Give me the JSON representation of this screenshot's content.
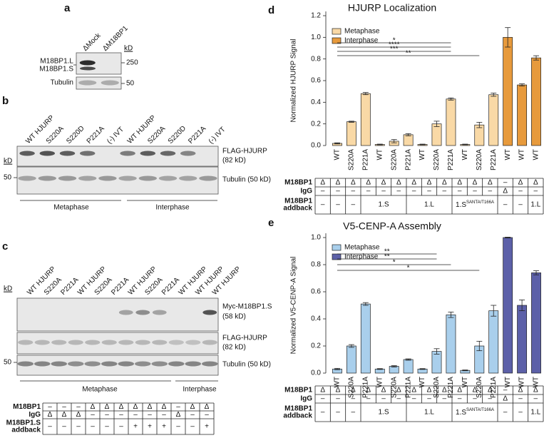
{
  "panel_a": {
    "label": "a",
    "lanes": [
      "ΔMock",
      "ΔM18BP1"
    ],
    "kd": "kD",
    "markers": [
      250,
      50
    ],
    "bands": [
      "M18BP1.L",
      "M18BP1.S"
    ],
    "loading": "Tubulin"
  },
  "panel_b": {
    "label": "b",
    "lanes": [
      "WT HJURP",
      "S220A",
      "S220D",
      "P221A",
      "(-) IVT",
      "WT HJURP",
      "S220A",
      "S220D",
      "P221A",
      "(-) IVT"
    ],
    "kd": "kD",
    "markers": [
      50
    ],
    "blots": [
      [
        "FLAG-HJURP",
        "(82 kD)"
      ],
      [
        "Tubulin (50 kD)"
      ]
    ],
    "groups": [
      "Metaphase",
      "Interphase"
    ]
  },
  "panel_c": {
    "label": "c",
    "lanes": [
      "WT HJURP",
      "S220A",
      "P221A",
      "WT HJURP",
      "S220A",
      "P221A",
      "WT HJURP",
      "S220A",
      "P221A",
      "WT HJURP",
      "WT HJURP",
      "WT HJURP"
    ],
    "kd": "kD",
    "markers": [
      50
    ],
    "blots": [
      [
        "Myc-M18BP1.S",
        "(58 kD)"
      ],
      [
        "FLAG-HJURP",
        "(82 kD)"
      ],
      [
        "Tubulin (50 kD)"
      ]
    ],
    "groups": [
      "Metaphase",
      "Interphase"
    ],
    "table": {
      "rows": [
        {
          "label": [
            "M18BP1"
          ],
          "cells": [
            "–",
            "–",
            "–",
            "Δ",
            "Δ",
            "Δ",
            "Δ",
            "Δ",
            "Δ",
            "–",
            "Δ",
            "Δ"
          ]
        },
        {
          "label": [
            "IgG"
          ],
          "cells": [
            "Δ",
            "Δ",
            "Δ",
            "–",
            "–",
            "–",
            "–",
            "–",
            "–",
            "Δ",
            "–",
            "–"
          ]
        },
        {
          "label": [
            "M18BP1.S",
            "addback"
          ],
          "cells": [
            "–",
            "–",
            "–",
            "–",
            "–",
            "–",
            "+",
            "+",
            "+",
            "–",
            "–",
            "+"
          ]
        }
      ]
    }
  },
  "chart_data": [
    {
      "type": "bar",
      "label": "d",
      "title": "HJURP Localization",
      "y_label": "Normalized HJURP Signal",
      "categories": [
        "WT",
        "S220A",
        "P221A",
        "WT",
        "S220A",
        "P221A",
        "WT",
        "S220A",
        "P221A",
        "WT",
        "S220A",
        "P221A",
        "WT",
        "WT",
        "WT"
      ],
      "series": [
        {
          "name": "Metaphase",
          "color": "#f9d9a6",
          "values": [
            0.02,
            0.22,
            0.48,
            0.01,
            0.04,
            0.1,
            0.01,
            0.2,
            0.43,
            0.01,
            0.19,
            0.47,
            null,
            null,
            null
          ],
          "errors": [
            0.005,
            0.005,
            0.01,
            0.003,
            0.015,
            0.01,
            0.003,
            0.025,
            0.01,
            0.003,
            0.025,
            0.015,
            null,
            null,
            null
          ]
        },
        {
          "name": "Interphase",
          "color": "#e79a3c",
          "values": [
            null,
            null,
            null,
            null,
            null,
            null,
            null,
            null,
            null,
            null,
            null,
            null,
            1.0,
            0.56,
            0.81
          ],
          "errors": [
            null,
            null,
            null,
            null,
            null,
            null,
            null,
            null,
            null,
            null,
            null,
            null,
            0.09,
            0.01,
            0.02
          ]
        }
      ],
      "ylim": [
        0,
        1.2
      ],
      "yticks": [
        {
          "value": 0,
          "label": "0.0"
        },
        0.2,
        0.4,
        0.6,
        0.8,
        {
          "value": 1,
          "label": "1.0"
        },
        1.2
      ],
      "annotations": [
        "*",
        "****",
        "***",
        "**"
      ],
      "table": {
        "rows": [
          {
            "label": [
              "M18BP1"
            ],
            "cells": [
              "Δ",
              "Δ",
              "Δ",
              "Δ",
              "Δ",
              "Δ",
              "Δ",
              "Δ",
              "Δ",
              "Δ",
              "Δ",
              "Δ",
              "–",
              "Δ",
              "Δ"
            ]
          },
          {
            "label": [
              "IgG"
            ],
            "cells": [
              "–",
              "–",
              "–",
              "–",
              "–",
              "–",
              "–",
              "–",
              "–",
              "–",
              "–",
              "–",
              "Δ",
              "–",
              "–"
            ]
          },
          {
            "label": [
              "M18BP1",
              "addback"
            ],
            "cells": [
              "–",
              "–",
              "–",
              "1.S",
              "1.L",
              {
                "text": "1.S",
                "sup": "SANTA/T166A"
              },
              "–",
              "–",
              "1.L"
            ]
          }
        ]
      }
    },
    {
      "type": "bar",
      "label": "e",
      "title": "V5-CENP-A Assembly",
      "y_label": "Normalized V5-CENP-A Signal",
      "categories": [
        "WT",
        "S220A",
        "P221A",
        "WT",
        "S220A",
        "P221A",
        "WT",
        "S220A",
        "P221A",
        "WT",
        "S220A",
        "P221A",
        "WT",
        "WT",
        "WT"
      ],
      "series": [
        {
          "name": "Metaphase",
          "color": "#a9cfec",
          "values": [
            0.03,
            0.2,
            0.51,
            0.03,
            0.05,
            0.1,
            0.03,
            0.16,
            0.43,
            0.02,
            0.2,
            0.46,
            null,
            null,
            null
          ],
          "errors": [
            0.005,
            0.01,
            0.01,
            0.003,
            0.005,
            0.005,
            0.003,
            0.02,
            0.02,
            0.003,
            0.035,
            0.04,
            null,
            null,
            null
          ]
        },
        {
          "name": "Interphase",
          "color": "#5c60a8",
          "values": [
            null,
            null,
            null,
            null,
            null,
            null,
            null,
            null,
            null,
            null,
            null,
            null,
            1.0,
            0.5,
            0.74
          ],
          "errors": [
            null,
            null,
            null,
            null,
            null,
            null,
            null,
            null,
            null,
            null,
            null,
            null,
            0.003,
            0.04,
            0.015
          ]
        }
      ],
      "ylim": [
        0,
        1.0
      ],
      "yticks": [
        {
          "value": 0,
          "label": "0.0"
        },
        0.2,
        0.4,
        0.6,
        0.8,
        {
          "value": 1,
          "label": "1.0"
        }
      ],
      "annotations": [
        "**",
        "**",
        "*",
        "*"
      ],
      "table": {
        "rows": [
          {
            "label": [
              "M18BP1"
            ],
            "cells": [
              "Δ",
              "Δ",
              "Δ",
              "Δ",
              "Δ",
              "Δ",
              "Δ",
              "Δ",
              "Δ",
              "Δ",
              "Δ",
              "Δ",
              "–",
              "Δ",
              "Δ"
            ]
          },
          {
            "label": [
              "IgG"
            ],
            "cells": [
              "–",
              "–",
              "–",
              "–",
              "–",
              "–",
              "–",
              "–",
              "–",
              "–",
              "–",
              "–",
              "Δ",
              "–",
              "–"
            ]
          },
          {
            "label": [
              "M18BP1",
              "addback"
            ],
            "cells": [
              "–",
              "–",
              "–",
              "1.S",
              "1.L",
              {
                "text": "1.S",
                "sup": "SANTA/T166A"
              },
              "–",
              "–",
              "1.L"
            ]
          }
        ]
      }
    }
  ]
}
